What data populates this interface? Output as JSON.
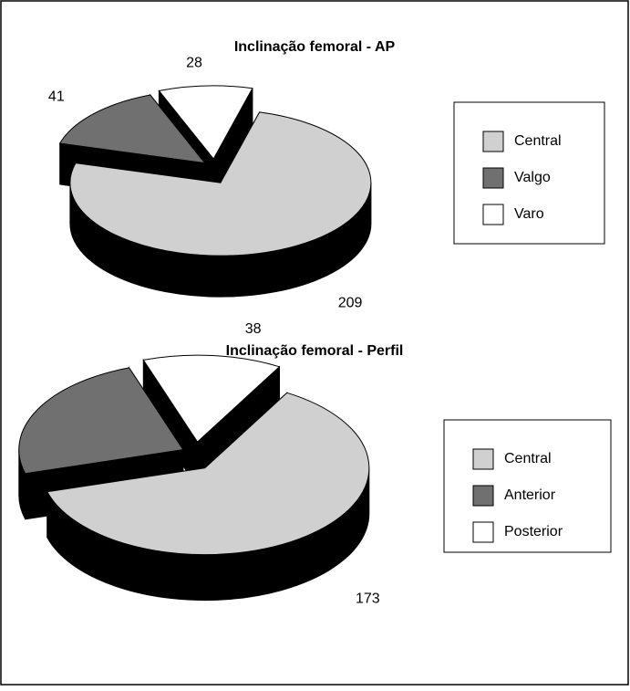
{
  "chart_data": [
    {
      "type": "pie",
      "title": "Inclinação femoral - AP",
      "categories": [
        "Central",
        "Valgo",
        "Varo"
      ],
      "values": [
        209,
        41,
        28
      ],
      "colors": [
        "#d0d0d0",
        "#707070",
        "#ffffff"
      ],
      "legend": "right"
    },
    {
      "type": "pie",
      "title": "Inclinação femoral - Perfil",
      "categories": [
        "Central",
        "Anterior",
        "Posterior"
      ],
      "values": [
        173,
        67,
        38
      ],
      "colors": [
        "#d0d0d0",
        "#707070",
        "#ffffff"
      ],
      "legend": "right"
    }
  ]
}
